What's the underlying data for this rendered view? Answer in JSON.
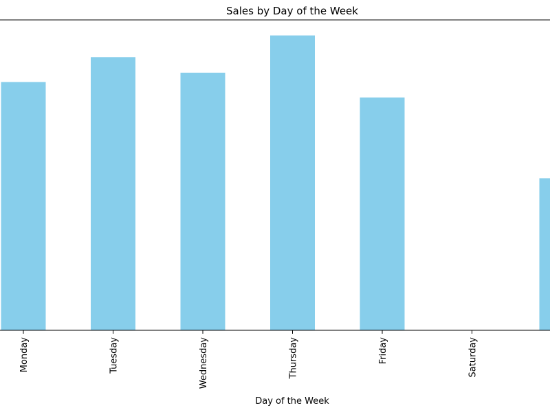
{
  "chart_data": {
    "type": "bar",
    "title": "Sales by Day of the Week",
    "x_label": "Day of the Week",
    "categories": [
      "Monday",
      "Tuesday",
      "Wednesday",
      "Thursday",
      "Friday",
      "Saturday",
      null
    ],
    "values": [
      80,
      88,
      83,
      95,
      75,
      0,
      49
    ],
    "color": "#87ceeb",
    "ylim": [
      0,
      100
    ],
    "grid": false
  }
}
